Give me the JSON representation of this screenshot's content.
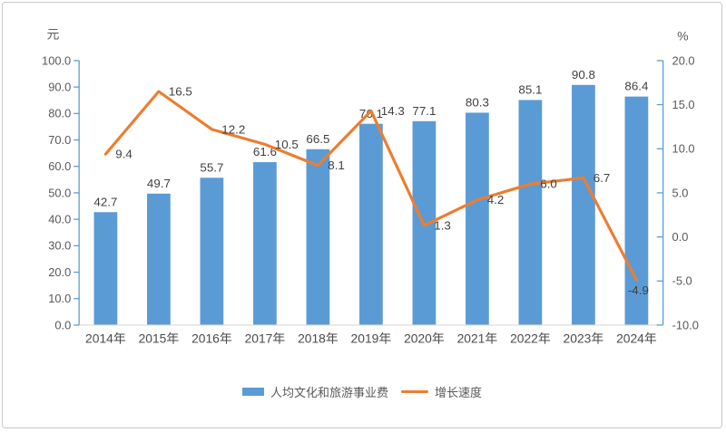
{
  "chart_data": {
    "type": "combo-bar-line",
    "categories": [
      "2014年",
      "2015年",
      "2016年",
      "2017年",
      "2018年",
      "2019年",
      "2020年",
      "2021年",
      "2022年",
      "2023年",
      "2024年"
    ],
    "series": [
      {
        "name": "人均文化和旅游事业费",
        "type": "bar",
        "axis": "left",
        "color": "#5b9bd5",
        "values": [
          42.7,
          49.7,
          55.7,
          61.6,
          66.5,
          76.1,
          77.1,
          80.3,
          85.1,
          90.8,
          86.4
        ],
        "labels": [
          "42.7",
          "49.7",
          "55.7",
          "61.6",
          "66.5",
          "76.1",
          "77.1",
          "80.3",
          "85.1",
          "90.8",
          "86.4"
        ]
      },
      {
        "name": "增长速度",
        "type": "line",
        "axis": "right",
        "color": "#ed7d31",
        "values": [
          9.4,
          16.5,
          12.2,
          10.5,
          8.1,
          14.3,
          1.3,
          4.2,
          6.0,
          6.7,
          -4.9
        ],
        "labels": [
          "9.4",
          "16.5",
          "12.2",
          "10.5",
          "8.1",
          "14.3",
          "1.3",
          "4.2",
          "6.0",
          "6.7",
          "-4.9"
        ]
      }
    ],
    "left_axis": {
      "unit": "元",
      "min": 0,
      "max": 100,
      "step": 10,
      "ticks": [
        "100.0",
        "90.0",
        "80.0",
        "70.0",
        "60.0",
        "50.0",
        "40.0",
        "30.0",
        "20.0",
        "10.0",
        "0.0"
      ]
    },
    "right_axis": {
      "unit": "%",
      "min": -10,
      "max": 20,
      "step": 5,
      "ticks": [
        "20.0",
        "15.0",
        "10.0",
        "5.0",
        "0.0",
        "-5.0",
        "-10.0"
      ]
    },
    "grid": false,
    "legend_position": "bottom",
    "title": ""
  },
  "colors": {
    "bar": "#5b9bd5",
    "line": "#ed7d31",
    "axis_blue": "#5b9bd5",
    "baseline_gray": "#d9d9d9",
    "value_label": "#3f3f3f",
    "tick_label": "#595959"
  }
}
